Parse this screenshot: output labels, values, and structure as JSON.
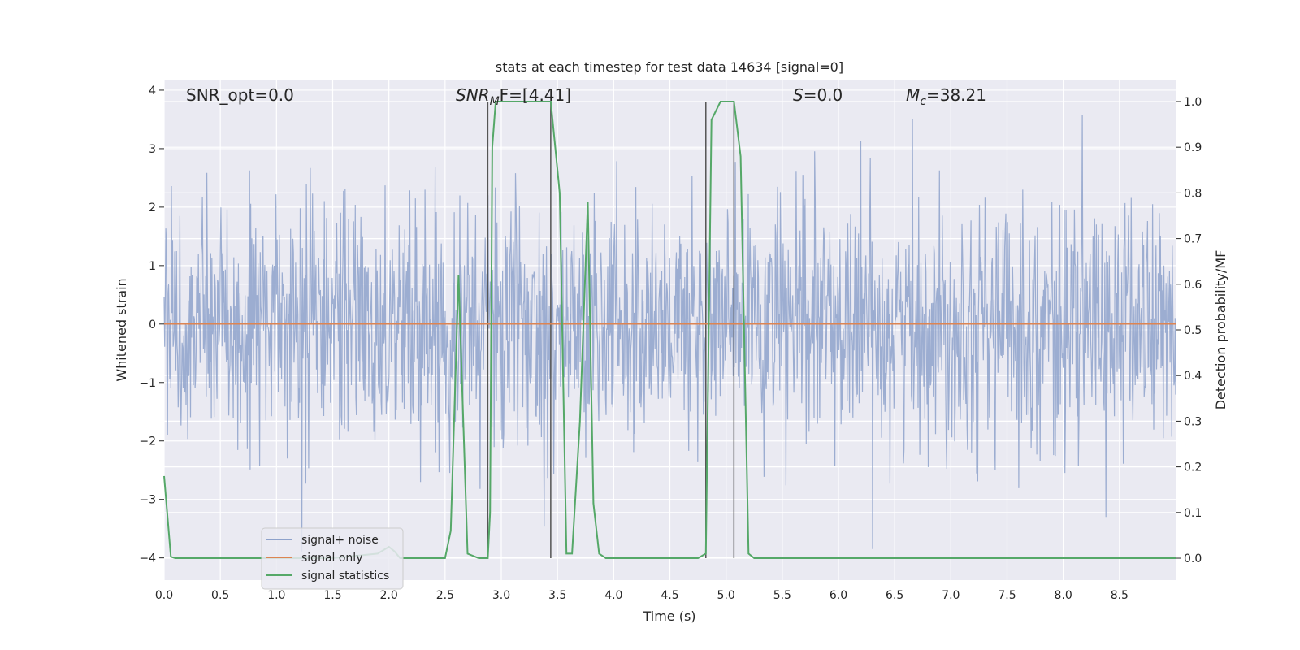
{
  "chart_data": {
    "type": "line",
    "title": "stats at each timestep for test data 14634 [signal=0]",
    "xlabel": "Time (s)",
    "ylabel": "Whitened strain",
    "y2label": "Detection probability/MF",
    "xlim": [
      0.0,
      9.0
    ],
    "ylim": [
      -4.38,
      4.18
    ],
    "y2lim": [
      -0.048,
      1.048
    ],
    "xticks": [
      "0.0",
      "0.5",
      "1.0",
      "1.5",
      "2.0",
      "2.5",
      "3.0",
      "3.5",
      "4.0",
      "4.5",
      "5.0",
      "5.5",
      "6.0",
      "6.5",
      "7.0",
      "7.5",
      "8.0",
      "8.5"
    ],
    "yticks": [
      "4",
      "3",
      "2",
      "1",
      "0",
      "−1",
      "−2",
      "−3",
      "−4"
    ],
    "y2ticks": [
      "1.0",
      "0.9",
      "0.8",
      "0.7",
      "0.6",
      "0.5",
      "0.4",
      "0.3",
      "0.2",
      "0.1",
      "0.0"
    ],
    "grid": true,
    "legend_position": "lower-left",
    "annotations": {
      "snr_opt": "SNR_opt=0.0",
      "snr_mf_main": "SNR",
      "snr_mf_sub": "M",
      "snr_mf_tail": "F=[4.41]",
      "s_main": "S",
      "s_tail": "=0.0",
      "mc_main": "M",
      "mc_sub": "c",
      "mc_tail": "=38.21"
    },
    "series": [
      {
        "name": "signal+ noise",
        "color": "#8ea2cb",
        "description_values": "whitened noise, approx. gaussian, amplitude within about -3.8 to 3.8",
        "typical_envelope": [
          -1.7,
          1.5
        ],
        "peak_range": [
          -4.0,
          3.8
        ]
      },
      {
        "name": "signal only",
        "color": "#dd8452",
        "y": 0.0
      },
      {
        "name": "signal statistics",
        "color": "#55a868",
        "axis": "right",
        "x": [
          0.0,
          0.06,
          0.1,
          0.2,
          0.5,
          1.0,
          1.5,
          1.9,
          2.0,
          2.05,
          2.1,
          2.5,
          2.55,
          2.62,
          2.7,
          2.8,
          2.88,
          2.9,
          2.92,
          2.95,
          3.0,
          3.1,
          3.2,
          3.3,
          3.4,
          3.44,
          3.48,
          3.52,
          3.58,
          3.63,
          3.7,
          3.77,
          3.82,
          3.87,
          3.93,
          4.0,
          4.5,
          4.75,
          4.82,
          4.87,
          4.95,
          5.0,
          5.07,
          5.13,
          5.2,
          5.25,
          5.5,
          6.0,
          7.0,
          8.0,
          9.0
        ],
        "y": [
          0.18,
          0.003,
          0.0,
          0.0,
          0.0,
          0.0,
          0.0,
          0.01,
          0.025,
          0.015,
          0.0,
          0.0,
          0.06,
          0.62,
          0.01,
          0.0,
          0.0,
          0.1,
          0.9,
          1.0,
          1.0,
          1.0,
          1.0,
          1.0,
          1.0,
          1.0,
          0.9,
          0.8,
          0.01,
          0.01,
          0.3,
          0.78,
          0.12,
          0.01,
          0.0,
          0.0,
          0.0,
          0.0,
          0.01,
          0.96,
          1.0,
          1.0,
          1.0,
          0.88,
          0.01,
          0.0,
          0.0,
          0.0,
          0.0,
          0.0,
          0.0
        ]
      }
    ],
    "vertical_lines": [
      2.88,
      3.44,
      4.82,
      5.07
    ]
  }
}
